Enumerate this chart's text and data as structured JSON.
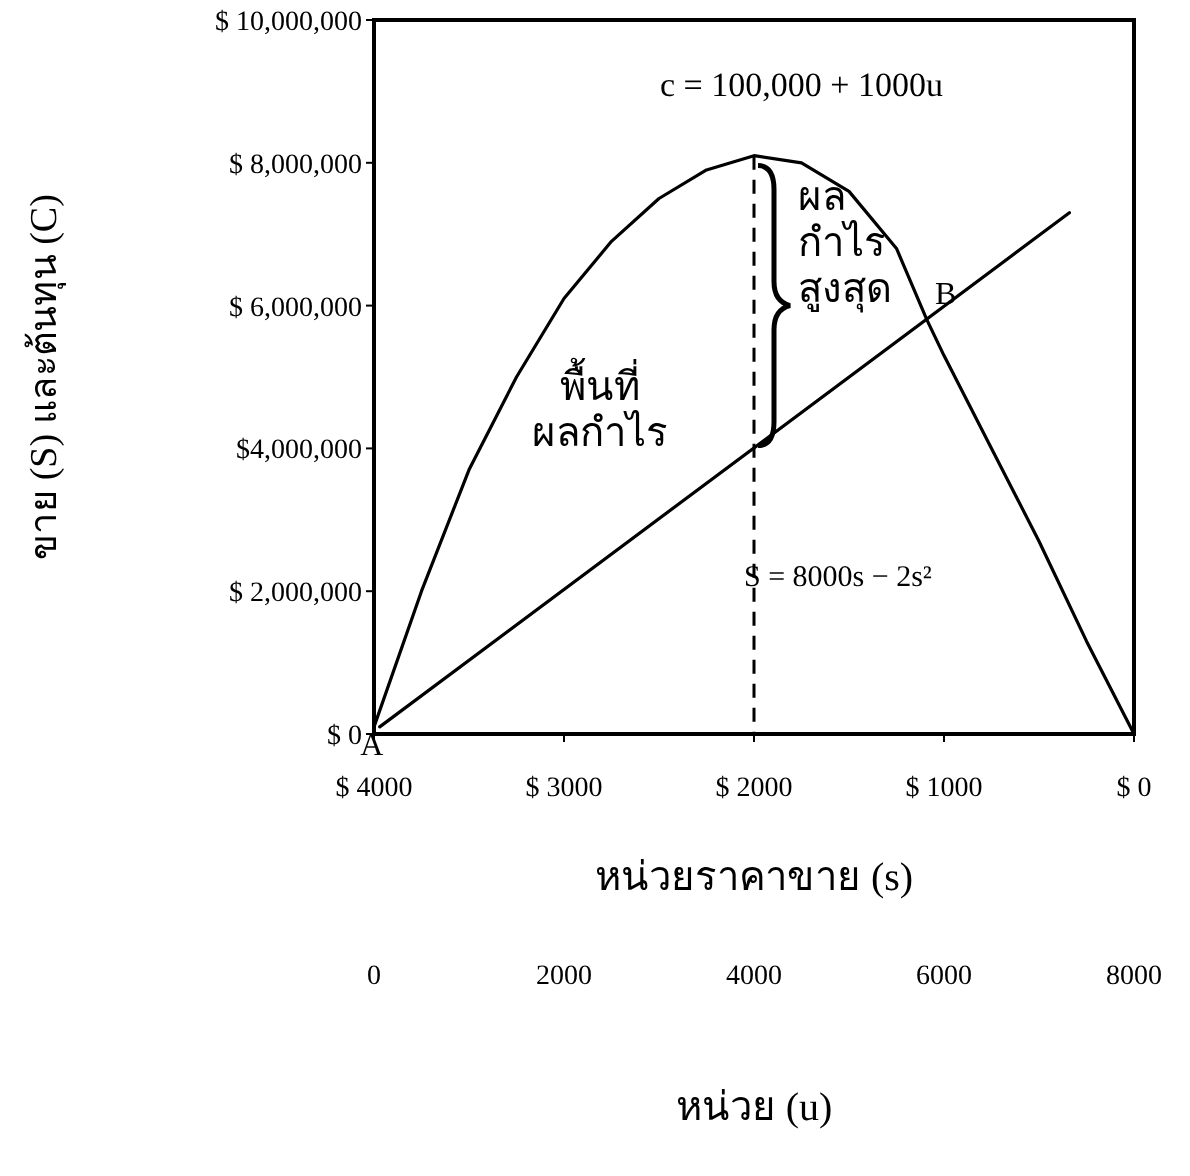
{
  "chart_data": {
    "type": "line",
    "ylabel": "ขาย (S) และต้นทุน (C)",
    "xlabel": "หน่วยราคาขาย (s)",
    "x2label": "หน่วย (u)",
    "xlim": [
      4000,
      0
    ],
    "xticks": [
      {
        "value": 4000,
        "label": "$ 4000"
      },
      {
        "value": 3000,
        "label": "$ 3000"
      },
      {
        "value": 2000,
        "label": "$ 2000"
      },
      {
        "value": 1000,
        "label": "$ 1000"
      },
      {
        "value": 0,
        "label": "$ 0"
      }
    ],
    "x2lim": [
      0,
      8000
    ],
    "x2ticks": [
      0,
      2000,
      4000,
      6000,
      8000
    ],
    "ylim": [
      0,
      10000000
    ],
    "yticks": [
      {
        "value": 0,
        "label": "$ 0"
      },
      {
        "value": 2000000,
        "label": "$ 2,000,000"
      },
      {
        "value": 4000000,
        "label": "$4,000,000"
      },
      {
        "value": 6000000,
        "label": "$ 6,000,000"
      },
      {
        "value": 8000000,
        "label": "$ 8,000,000"
      },
      {
        "value": 10000000,
        "label": "$ 10,000,000"
      }
    ],
    "series": [
      {
        "color": "#000000",
        "x": [
          4000,
          3750,
          3500,
          3250,
          3000,
          2750,
          2500,
          2250,
          2000,
          1750,
          1500,
          1250,
          1090,
          1000,
          750,
          500,
          250,
          0
        ],
        "values": [
          100000,
          2000000,
          3700000,
          5000000,
          6100000,
          6900000,
          7500000,
          7900000,
          8100000,
          8000000,
          7600000,
          6800000,
          5800000,
          5300000,
          4000000,
          2700000,
          1300000,
          0
        ]
      },
      {
        "color": "#000000",
        "x": [
          3970,
          340
        ],
        "values": [
          100000,
          7300000
        ]
      }
    ],
    "ref_lines": [
      {
        "axis": "x",
        "value": 2000,
        "line_style": "dashed",
        "color": "#000000"
      }
    ],
    "annotations": [
      {
        "text": "A",
        "x": 3970,
        "y": 100000
      },
      {
        "text": "B",
        "x": 1090,
        "y": 5800000
      },
      "c = 100,000 + 1000u",
      "S = 8000s − 2s²",
      "พื้นที่\nผลกำไร",
      {
        "text": "ผล\nกำไร\nสูงสุด",
        "x": 2000,
        "y": 6000000
      }
    ],
    "grid": false
  }
}
